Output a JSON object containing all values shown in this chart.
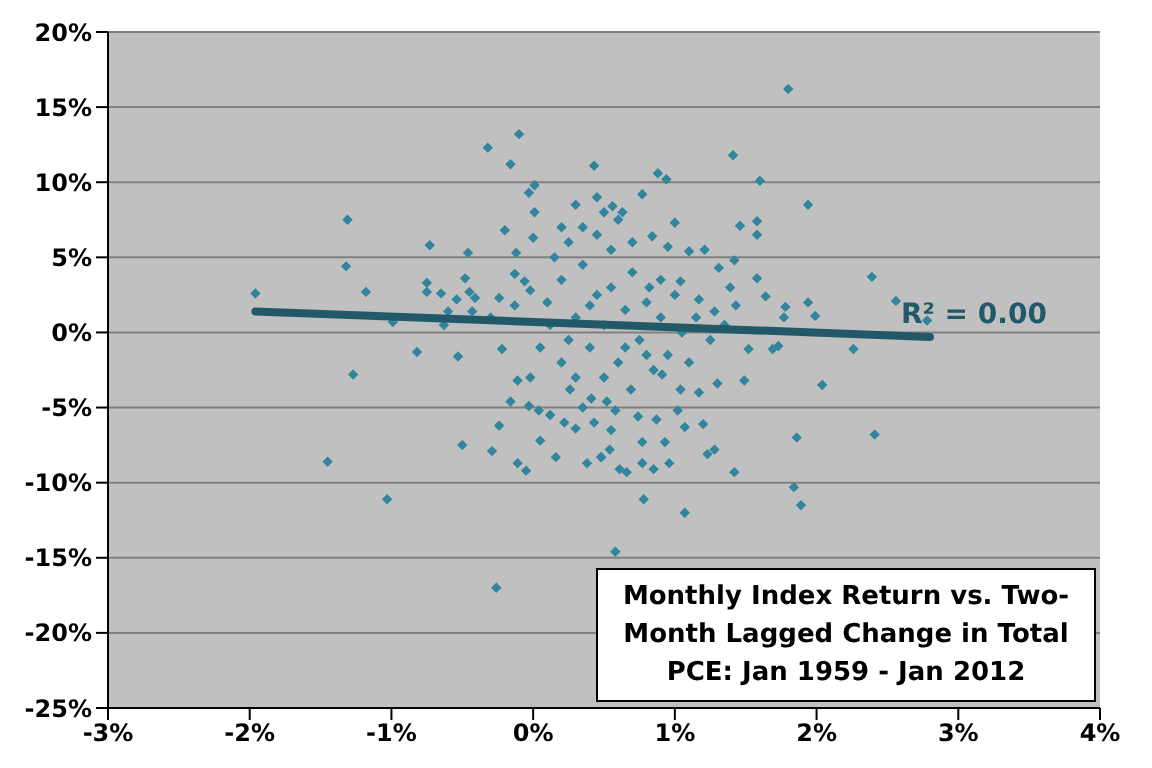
{
  "chart_data": {
    "type": "scatter",
    "title": "Monthly Index Return vs. Two-Month Lagged Change in Total PCE: Jan 1959 - Jan 2012",
    "xlim": [
      -3,
      4
    ],
    "xticks": [
      {
        "value": -3,
        "label": "-3%"
      },
      {
        "value": -2,
        "label": "-2%"
      },
      {
        "value": -1,
        "label": "-1%"
      },
      {
        "value": 0,
        "label": "0%"
      },
      {
        "value": 1,
        "label": "1%"
      },
      {
        "value": 2,
        "label": "2%"
      },
      {
        "value": 3,
        "label": "3%"
      },
      {
        "value": 4,
        "label": "4%"
      }
    ],
    "ylim": [
      -25,
      20
    ],
    "yticks": [
      {
        "value": -25,
        "label": "-25%"
      },
      {
        "value": -20,
        "label": "-20%"
      },
      {
        "value": -15,
        "label": "-15%"
      },
      {
        "value": -10,
        "label": "-10%"
      },
      {
        "value": -5,
        "label": "-5%"
      },
      {
        "value": 0,
        "label": "0%"
      },
      {
        "value": 5,
        "label": "5%"
      },
      {
        "value": 10,
        "label": "10%"
      },
      {
        "value": 15,
        "label": "15%"
      },
      {
        "value": 20,
        "label": "20%"
      }
    ],
    "grid": "y",
    "annotations": [
      {
        "text": "R² = 0.00",
        "x": 2.8,
        "y": -0.3
      }
    ],
    "series": [
      {
        "marker": "diamond",
        "color": "#31859c",
        "x": [
          -1.96,
          -1.31,
          -1.32,
          -1.18,
          -0.99,
          -0.73,
          -0.75,
          -0.75,
          -0.65,
          -0.54,
          -0.46,
          -0.48,
          -0.45,
          -0.41,
          -0.43,
          -0.24,
          -0.2,
          -0.32,
          -0.16,
          -0.1,
          -0.12,
          -0.13,
          -0.06,
          -0.02,
          -0.13,
          -0.03,
          0.01,
          0.01,
          0,
          -0.63,
          -0.6,
          -0.3,
          -0.82,
          -0.53,
          -1.27,
          1.8,
          1.41,
          1.6,
          1.94,
          0.88,
          0.94,
          0.77,
          0.43,
          1,
          1.46,
          1.58,
          1.58,
          2.39,
          2.56,
          2.78,
          2.26,
          1.99,
          1.94,
          1.78,
          1.77,
          1.64,
          1.58,
          1.42,
          1.21,
          1.1,
          0.95,
          0.84,
          0.63,
          0.56,
          0.5,
          1.31,
          1.39,
          1.43,
          1.04,
          0.82,
          1.17,
          1.28,
          1.52,
          1.69,
          -1.45,
          -1.03,
          -0.26,
          -0.5,
          -0.29,
          -0.11,
          -0.05,
          -0.24,
          -0.16,
          -0.03,
          0.05,
          0.16,
          0.38,
          0.48,
          0.04,
          0.12,
          0.22,
          0.26,
          0.41,
          0.3,
          -0.11,
          -0.02,
          -0.22,
          0.58,
          1.07,
          1.89,
          1.84,
          0.78,
          1.42,
          2.41,
          1.86,
          1.23,
          1.28,
          0.96,
          0.85,
          0.77,
          0.66,
          0.61,
          0.48,
          0.54,
          0.77,
          0.93,
          1.07,
          1.2,
          0.74,
          0.87,
          1.02,
          0.58,
          0.43,
          1.04,
          1.17,
          1.3,
          1.49,
          2.04,
          1.73,
          0.91,
          0.69,
          0.52,
          0.1,
          0.2,
          0.3,
          0.35,
          0.4,
          0.45,
          0.5,
          0.55,
          0.6,
          0.65,
          0.7,
          0.75,
          0.8,
          0.85,
          0.9,
          0.95,
          1,
          1.05,
          1.1,
          0.2,
          0.3,
          0.15,
          0.25,
          0.35,
          0.45,
          0.55,
          0.6,
          0.7,
          0.05,
          0.12,
          0.25,
          0.4,
          0.5,
          0.65,
          0.8,
          0.9,
          1.15,
          1.25,
          1.35,
          0.3,
          0.2,
          0.45,
          0.55,
          0.35
        ],
        "values": [
          2.6,
          7.5,
          4.4,
          2.7,
          0.7,
          5.8,
          3.3,
          2.7,
          2.6,
          2.2,
          5.3,
          3.6,
          2.7,
          2.3,
          1.4,
          2.3,
          6.8,
          12.3,
          11.2,
          13.2,
          5.3,
          3.9,
          3.4,
          2.8,
          1.8,
          9.3,
          9.8,
          8,
          6.3,
          0.5,
          1.4,
          1,
          -1.3,
          -1.6,
          -2.8,
          16.2,
          11.8,
          10.1,
          8.5,
          10.6,
          10.2,
          9.2,
          11.1,
          7.3,
          7.1,
          7.4,
          6.5,
          3.7,
          2.1,
          0.8,
          -1.1,
          1.1,
          2,
          1.7,
          1,
          2.4,
          3.6,
          4.8,
          5.5,
          5.4,
          5.7,
          6.4,
          8,
          8.4,
          8,
          4.3,
          3,
          1.8,
          3.4,
          3,
          2.2,
          1.4,
          -1.1,
          -1.1,
          -8.6,
          -11.1,
          -17,
          -7.5,
          -7.9,
          -8.7,
          -9.2,
          -6.2,
          -4.6,
          -4.9,
          -7.2,
          -8.3,
          -8.7,
          -8.3,
          -5.2,
          -5.5,
          -6,
          -3.8,
          -4.4,
          -6.4,
          -3.2,
          -3,
          -1.1,
          -14.6,
          -12,
          -11.5,
          -10.3,
          -11.1,
          -9.3,
          -6.8,
          -7,
          -8.1,
          -7.8,
          -8.7,
          -9.1,
          -8.7,
          -9.3,
          -9.1,
          -8.3,
          -7.8,
          -7.3,
          -7.3,
          -6.3,
          -6.1,
          -5.6,
          -5.8,
          -5.2,
          -5.2,
          -6,
          -3.8,
          -4,
          -3.4,
          -3.2,
          -3.5,
          -0.9,
          -2.8,
          -3.8,
          -4.6,
          2,
          3.5,
          1,
          4.5,
          -1,
          2.5,
          0.5,
          3,
          -2,
          1.5,
          4,
          -0.5,
          2,
          -2.5,
          1,
          -1.5,
          2.5,
          0,
          -2,
          -2,
          -3,
          5,
          6,
          7,
          6.5,
          5.5,
          7.5,
          6,
          -1,
          0.5,
          -0.5,
          1.8,
          -3,
          -1,
          -1.5,
          3.5,
          1,
          -0.5,
          0.5,
          8.5,
          7,
          9,
          -6.5,
          -5
        ]
      },
      {
        "type": "line",
        "color": "#215968",
        "x": [
          -1.96,
          2.8
        ],
        "values": [
          1.4,
          -0.3
        ]
      }
    ]
  }
}
